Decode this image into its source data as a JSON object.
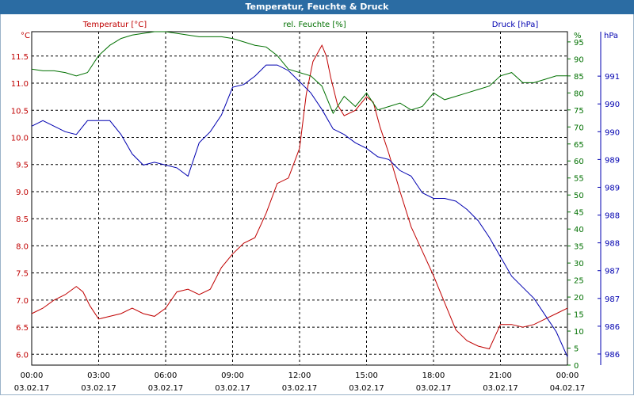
{
  "window": {
    "title": "Temperatur, Feuchte & Druck"
  },
  "chart_data": {
    "type": "line",
    "title": "Temperatur, Feuchte & Druck",
    "colors": {
      "temperature": "#c00000",
      "humidity": "#007000",
      "pressure": "#0000b0",
      "grid": "#000000",
      "text": "#000000"
    },
    "x_ticks": [
      {
        "hour": 0,
        "time": "00:00",
        "date": "03.02.17"
      },
      {
        "hour": 3,
        "time": "03:00",
        "date": "03.02.17"
      },
      {
        "hour": 6,
        "time": "06:00",
        "date": "03.02.17"
      },
      {
        "hour": 9,
        "time": "09:00",
        "date": "03.02.17"
      },
      {
        "hour": 12,
        "time": "12:00",
        "date": "03.02.17"
      },
      {
        "hour": 15,
        "time": "15:00",
        "date": "03.02.17"
      },
      {
        "hour": 18,
        "time": "18:00",
        "date": "03.02.17"
      },
      {
        "hour": 21,
        "time": "21:00",
        "date": "03.02.17"
      },
      {
        "hour": 24,
        "time": "00:00",
        "date": "04.02.17"
      }
    ],
    "xlim": [
      0,
      24
    ],
    "axes": {
      "temperature": {
        "legend": "Temperatur [°C]",
        "unit": "°C",
        "ylim": [
          5.8,
          11.95
        ],
        "ticks": [
          "6.0",
          "6.5",
          "7.0",
          "7.5",
          "8.0",
          "8.5",
          "9.0",
          "9.5",
          "10.0",
          "10.5",
          "11.0",
          "11.5"
        ]
      },
      "humidity": {
        "legend": "rel. Feuchte [%]",
        "unit": "%",
        "ylim": [
          0,
          98
        ],
        "ticks": [
          "0",
          "5",
          "10",
          "15",
          "20",
          "25",
          "30",
          "35",
          "40",
          "45",
          "50",
          "55",
          "60",
          "65",
          "70",
          "75",
          "80",
          "85",
          "90",
          "95"
        ]
      },
      "pressure": {
        "legend": "Druck [hPa]",
        "unit": "hPa",
        "ylim": [
          985.8,
          991.8
        ],
        "ticks": [
          {
            "v": 986.0,
            "label": "986"
          },
          {
            "v": 986.5,
            "label": "986"
          },
          {
            "v": 987.0,
            "label": "987"
          },
          {
            "v": 987.5,
            "label": "987"
          },
          {
            "v": 988.0,
            "label": "988"
          },
          {
            "v": 988.5,
            "label": "988"
          },
          {
            "v": 989.0,
            "label": "989"
          },
          {
            "v": 989.5,
            "label": "989"
          },
          {
            "v": 990.0,
            "label": "990"
          },
          {
            "v": 990.5,
            "label": "990"
          },
          {
            "v": 991.0,
            "label": "991"
          }
        ]
      }
    },
    "series": [
      {
        "name": "Temperatur [°C]",
        "axis": "temperature",
        "x": [
          0,
          0.5,
          1,
          1.5,
          2,
          2.3,
          2.6,
          3,
          3.5,
          4,
          4.5,
          5,
          5.5,
          6,
          6.5,
          7,
          7.5,
          8,
          8.5,
          9,
          9.5,
          10,
          10.5,
          11,
          11.5,
          12,
          12.3,
          12.6,
          13,
          13.2,
          13.4,
          13.7,
          14,
          14.5,
          15,
          15.3,
          15.6,
          16,
          16.5,
          17,
          17.5,
          18,
          18.5,
          19,
          19.5,
          20,
          20.5,
          21,
          21.2,
          21.5,
          22,
          22.5,
          23,
          23.5,
          24
        ],
        "values": [
          6.75,
          6.85,
          7.0,
          7.1,
          7.25,
          7.15,
          6.9,
          6.65,
          6.7,
          6.75,
          6.85,
          6.75,
          6.7,
          6.85,
          7.15,
          7.2,
          7.1,
          7.2,
          7.6,
          7.85,
          8.05,
          8.15,
          8.6,
          9.15,
          9.25,
          9.8,
          10.8,
          11.4,
          11.7,
          11.5,
          11.1,
          10.6,
          10.4,
          10.5,
          10.75,
          10.65,
          10.2,
          9.7,
          9.0,
          8.35,
          7.9,
          7.45,
          6.95,
          6.45,
          6.25,
          6.15,
          6.1,
          6.55,
          6.55,
          6.55,
          6.5,
          6.55,
          6.65,
          6.75,
          6.85
        ]
      },
      {
        "name": "rel. Feuchte [%]",
        "axis": "humidity",
        "x": [
          0,
          0.5,
          1,
          1.5,
          2,
          2.5,
          3,
          3.5,
          4,
          4.5,
          5,
          5.5,
          6,
          6.5,
          7,
          7.5,
          8,
          8.5,
          9,
          9.5,
          10,
          10.5,
          11,
          11.5,
          12,
          12.5,
          13,
          13.5,
          14,
          14.5,
          15,
          15.5,
          16,
          16.5,
          17,
          17.5,
          18,
          18.5,
          19,
          19.5,
          20,
          20.5,
          21,
          21.5,
          22,
          22.5,
          23,
          23.5,
          24
        ],
        "values": [
          87,
          86.5,
          86.5,
          86,
          85,
          86,
          91,
          94,
          96,
          97,
          97.5,
          98,
          98,
          97.5,
          97,
          96.5,
          96.5,
          96.5,
          96,
          95,
          94,
          93.5,
          91,
          87,
          86,
          85,
          82,
          74,
          79,
          76,
          80,
          75,
          76,
          77,
          75,
          76,
          80,
          78,
          79,
          80,
          81,
          82,
          85,
          86,
          83,
          83,
          84,
          85,
          85
        ]
      },
      {
        "name": "Druck [hPa]",
        "axis": "pressure",
        "x": [
          0,
          0.5,
          1,
          1.5,
          2,
          2.5,
          3,
          3.5,
          4,
          4.5,
          5,
          5.5,
          6,
          6.5,
          7,
          7.5,
          8,
          8.5,
          9,
          9.5,
          10,
          10.5,
          11,
          11.5,
          12,
          12.5,
          13,
          13.5,
          14,
          14.5,
          15,
          15.5,
          16,
          16.5,
          17,
          17.5,
          18,
          18.5,
          19,
          19.5,
          20,
          20.5,
          21,
          21.5,
          22,
          22.5,
          23,
          23.5,
          24
        ],
        "values": [
          990.1,
          990.2,
          990.1,
          990.0,
          989.95,
          990.2,
          990.2,
          990.2,
          989.95,
          989.6,
          989.4,
          989.45,
          989.4,
          989.35,
          989.2,
          989.8,
          990.0,
          990.3,
          990.8,
          990.85,
          991.0,
          991.2,
          991.2,
          991.1,
          990.9,
          990.7,
          990.4,
          990.05,
          989.95,
          989.8,
          989.7,
          989.55,
          989.5,
          989.3,
          989.2,
          988.9,
          988.8,
          988.8,
          988.75,
          988.6,
          988.4,
          988.1,
          987.75,
          987.4,
          987.2,
          987.0,
          986.7,
          986.4,
          985.95
        ]
      }
    ]
  }
}
